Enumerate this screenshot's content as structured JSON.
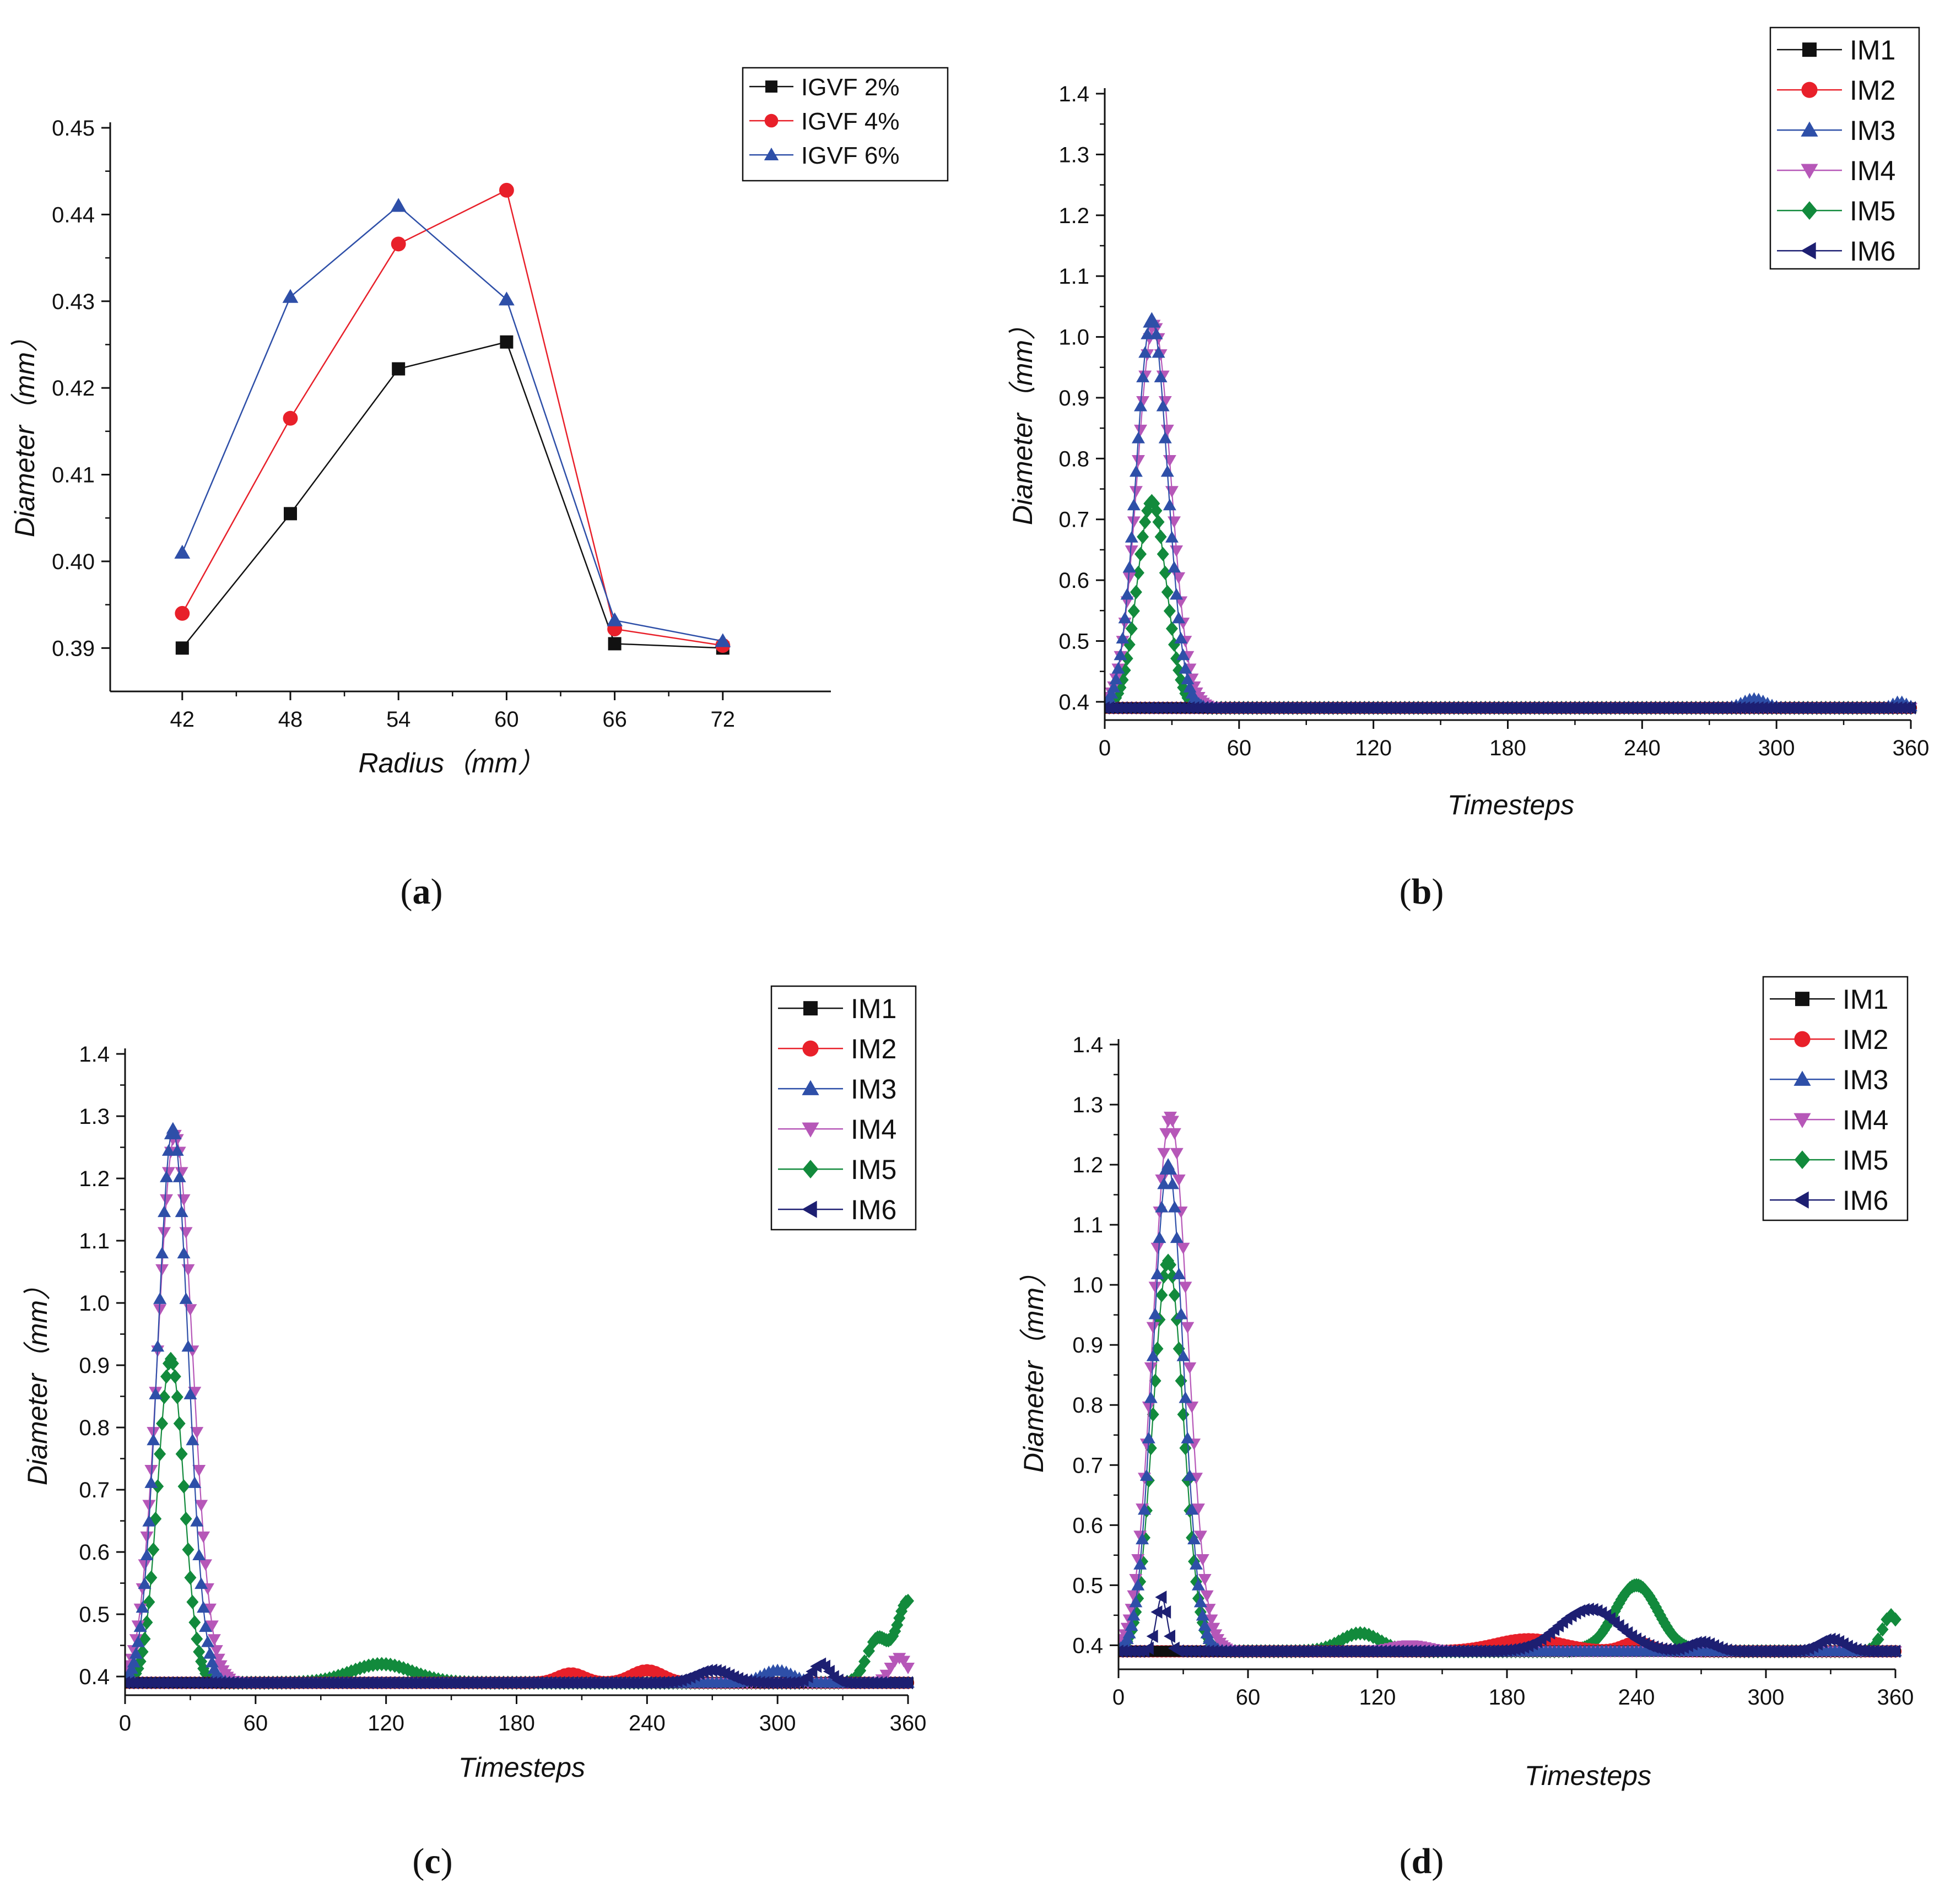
{
  "colors": {
    "black": "#111111",
    "red": "#e8202a",
    "blue": "#2e4fa8",
    "magenta": "#b657b8",
    "green": "#128a3c",
    "navy": "#1d1f72"
  },
  "chart_data": [
    {
      "id": "a",
      "panel_label": "a",
      "type": "line",
      "xlabel": "Radius（mm）",
      "ylabel": "Diameter（mm）",
      "x": [
        42,
        48,
        54,
        60,
        66,
        72
      ],
      "xlim": [
        38,
        78
      ],
      "ylim": [
        0.385,
        0.45
      ],
      "xticks": [
        "42",
        "48",
        "54",
        "60",
        "66",
        "72"
      ],
      "yticks": [
        "0.39",
        "0.40",
        "0.41",
        "0.42",
        "0.43",
        "0.44",
        "0.45"
      ],
      "legend_position": "top-right",
      "series": [
        {
          "name": "IGVF 2%",
          "color_key": "black",
          "marker": "square",
          "values": [
            0.39,
            0.4055,
            0.4222,
            0.4253,
            0.3905,
            0.39
          ]
        },
        {
          "name": "IGVF 4%",
          "color_key": "red",
          "marker": "circle",
          "values": [
            0.394,
            0.4165,
            0.4366,
            0.4428,
            0.3922,
            0.3903
          ]
        },
        {
          "name": "IGVF 6%",
          "color_key": "blue",
          "marker": "triangle-up",
          "values": [
            0.401,
            0.4305,
            0.441,
            0.4302,
            0.3932,
            0.3908
          ]
        }
      ]
    },
    {
      "id": "b",
      "panel_label": "b",
      "type": "line",
      "xlabel": "Timesteps",
      "ylabel": "Diameter（mm）",
      "xlim": [
        0,
        360
      ],
      "ylim": [
        0.37,
        1.4
      ],
      "xticks": [
        "0",
        "60",
        "120",
        "180",
        "240",
        "300",
        "360"
      ],
      "yticks": [
        "0.4",
        "0.5",
        "0.6",
        "0.7",
        "0.8",
        "0.9",
        "1.0",
        "1.1",
        "1.2",
        "1.3",
        "1.4"
      ],
      "legend_position": "top-right",
      "baseline": 0.39,
      "series": [
        {
          "name": "IM1",
          "color_key": "black",
          "marker": "square",
          "peaks": []
        },
        {
          "name": "IM2",
          "color_key": "red",
          "marker": "circle",
          "peaks": []
        },
        {
          "name": "IM3",
          "color_key": "blue",
          "marker": "triangle-up",
          "peaks": [
            {
              "center": 21,
              "amp": 0.64,
              "width": 7
            },
            {
              "center": 290,
              "amp": 0.015,
              "width": 5
            },
            {
              "center": 355,
              "amp": 0.01,
              "width": 3
            }
          ]
        },
        {
          "name": "IM4",
          "color_key": "magenta",
          "marker": "triangle-down",
          "peaks": [
            {
              "center": 22,
              "amp": 0.63,
              "width": 7.5
            }
          ]
        },
        {
          "name": "IM5",
          "color_key": "green",
          "marker": "diamond",
          "peaks": [
            {
              "center": 21,
              "amp": 0.34,
              "width": 6.5
            }
          ]
        },
        {
          "name": "IM6",
          "color_key": "navy",
          "marker": "triangle-left",
          "peaks": []
        }
      ]
    },
    {
      "id": "c",
      "panel_label": "c",
      "type": "line",
      "xlabel": "Timesteps",
      "ylabel": "Diameter（mm）",
      "xlim": [
        0,
        360
      ],
      "ylim": [
        0.37,
        1.4
      ],
      "xticks": [
        "0",
        "60",
        "120",
        "180",
        "240",
        "300",
        "360"
      ],
      "yticks": [
        "0.4",
        "0.5",
        "0.6",
        "0.7",
        "0.8",
        "0.9",
        "1.0",
        "1.1",
        "1.2",
        "1.3",
        "1.4"
      ],
      "legend_position": "top-right",
      "baseline": 0.39,
      "series": [
        {
          "name": "IM1",
          "color_key": "black",
          "marker": "square",
          "peaks": []
        },
        {
          "name": "IM2",
          "color_key": "red",
          "marker": "circle",
          "peaks": [
            {
              "center": 205,
              "amp": 0.015,
              "width": 6
            },
            {
              "center": 240,
              "amp": 0.02,
              "width": 7
            }
          ]
        },
        {
          "name": "IM3",
          "color_key": "blue",
          "marker": "triangle-up",
          "peaks": [
            {
              "center": 22,
              "amp": 0.89,
              "width": 7
            },
            {
              "center": 300,
              "amp": 0.02,
              "width": 7
            }
          ]
        },
        {
          "name": "IM4",
          "color_key": "magenta",
          "marker": "triangle-down",
          "peaks": [
            {
              "center": 23,
              "amp": 0.88,
              "width": 8
            },
            {
              "center": 356,
              "amp": 0.04,
              "width": 4
            }
          ]
        },
        {
          "name": "IM5",
          "color_key": "green",
          "marker": "diamond",
          "peaks": [
            {
              "center": 21,
              "amp": 0.52,
              "width": 6
            },
            {
              "center": 118,
              "amp": 0.03,
              "width": 14
            },
            {
              "center": 346,
              "amp": 0.07,
              "width": 5
            },
            {
              "center": 360,
              "amp": 0.13,
              "width": 5
            }
          ]
        },
        {
          "name": "IM6",
          "color_key": "navy",
          "marker": "triangle-left",
          "peaks": [
            {
              "center": 270,
              "amp": 0.02,
              "width": 8
            },
            {
              "center": 320,
              "amp": 0.03,
              "width": 4
            }
          ]
        }
      ]
    },
    {
      "id": "d",
      "panel_label": "d",
      "type": "line",
      "xlabel": "Timesteps",
      "ylabel": "Diameter（mm）",
      "xlim": [
        0,
        360
      ],
      "ylim": [
        0.36,
        1.4
      ],
      "xticks": [
        "0",
        "60",
        "120",
        "180",
        "240",
        "300",
        "360"
      ],
      "yticks": [
        "0.4",
        "0.5",
        "0.6",
        "0.7",
        "0.8",
        "0.9",
        "1.0",
        "1.1",
        "1.2",
        "1.3",
        "1.4"
      ],
      "legend_position": "top-right",
      "baseline": 0.39,
      "series": [
        {
          "name": "IM1",
          "color_key": "black",
          "marker": "square",
          "peaks": []
        },
        {
          "name": "IM2",
          "color_key": "red",
          "marker": "circle",
          "peaks": [
            {
              "center": 190,
              "amp": 0.02,
              "width": 15
            },
            {
              "center": 240,
              "amp": 0.015,
              "width": 6
            }
          ]
        },
        {
          "name": "IM3",
          "color_key": "blue",
          "marker": "triangle-up",
          "peaks": [
            {
              "center": 23,
              "amp": 0.81,
              "width": 7
            }
          ]
        },
        {
          "name": "IM4",
          "color_key": "magenta",
          "marker": "triangle-down",
          "peaks": [
            {
              "center": 24,
              "amp": 0.89,
              "width": 8
            },
            {
              "center": 135,
              "amp": 0.01,
              "width": 8
            }
          ]
        },
        {
          "name": "IM5",
          "color_key": "green",
          "marker": "diamond",
          "peaks": [
            {
              "center": 23,
              "amp": 0.65,
              "width": 7
            },
            {
              "center": 112,
              "amp": 0.03,
              "width": 9
            },
            {
              "center": 240,
              "amp": 0.11,
              "width": 10
            },
            {
              "center": 358,
              "amp": 0.06,
              "width": 4
            }
          ]
        },
        {
          "name": "IM6",
          "color_key": "navy",
          "marker": "triangle-left",
          "peaks": [
            {
              "center": 20,
              "amp": 0.09,
              "width": 2.5
            },
            {
              "center": 218,
              "amp": 0.07,
              "width": 14
            },
            {
              "center": 270,
              "amp": 0.015,
              "width": 6
            },
            {
              "center": 330,
              "amp": 0.02,
              "width": 6
            }
          ]
        }
      ]
    }
  ]
}
